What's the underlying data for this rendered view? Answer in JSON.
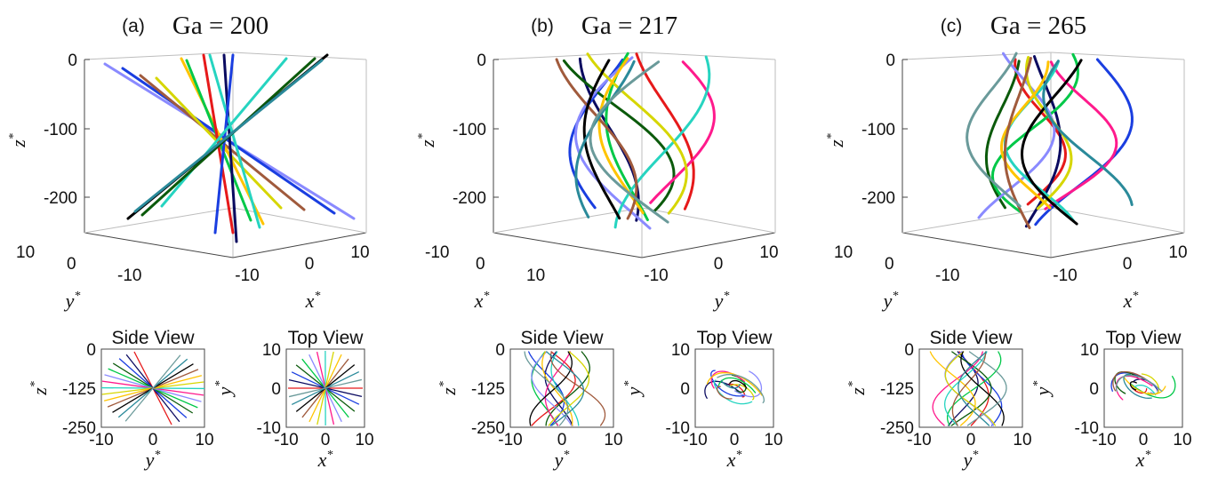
{
  "colors": [
    "#e6191a",
    "#0a0a60",
    "#1a3ee0",
    "#0b5a0b",
    "#00c848",
    "#8a8aff",
    "#ff1a8c",
    "#26d4c0",
    "#d6d600",
    "#ffc400",
    "#a05a3c",
    "#000000",
    "#2a8a9a",
    "#6a9a9a"
  ],
  "chart_data": [
    {
      "panel": "a",
      "label": "(a)",
      "title": "Ga = 200",
      "type": "line",
      "ga": 200,
      "pattern": "straight oblique trajectories through a common point",
      "view3d": {
        "zticks": [
          "0",
          "-100",
          "-200"
        ],
        "zlabel": "z*",
        "zlim": [
          -250,
          0
        ],
        "left_axis": {
          "label": "y*",
          "ticks": [
            "10",
            "0",
            "-10"
          ]
        },
        "right_axis": {
          "label": "x*",
          "ticks": [
            "-10",
            "0",
            "10"
          ]
        }
      },
      "side_view": {
        "title": "Side View",
        "xlabel": "y*",
        "ylabel": "z*",
        "xticks": [
          "-10",
          "0",
          "10"
        ],
        "yticks": [
          "0",
          "-125",
          "-250"
        ],
        "xlim": [
          -10,
          10
        ],
        "ylim": [
          -250,
          0
        ]
      },
      "top_view": {
        "title": "Top View",
        "xlabel": "x*",
        "ylabel": "y*",
        "xticks": [
          "-10",
          "0",
          "10"
        ],
        "yticks": [
          "10",
          "0",
          "-10"
        ],
        "xlim": [
          -10,
          10
        ],
        "ylim": [
          -10,
          10
        ]
      }
    },
    {
      "panel": "b",
      "label": "(b)",
      "title": "Ga = 217",
      "type": "line",
      "ga": 217,
      "pattern": "planar zigzag trajectories",
      "view3d": {
        "zticks": [
          "0",
          "-100",
          "-200"
        ],
        "zlabel": "z*",
        "zlim": [
          -250,
          0
        ],
        "left_axis": {
          "label": "x*",
          "ticks": [
            "-10",
            "0",
            "10"
          ]
        },
        "right_axis": {
          "label": "y*",
          "ticks": [
            "-10",
            "0",
            "10"
          ]
        }
      },
      "side_view": {
        "title": "Side View",
        "xlabel": "y*",
        "ylabel": "z*",
        "xticks": [
          "-10",
          "0",
          "10"
        ],
        "yticks": [
          "0",
          "-125",
          "-250"
        ],
        "xlim": [
          -10,
          10
        ],
        "ylim": [
          -250,
          0
        ]
      },
      "top_view": {
        "title": "Top View",
        "xlabel": "x*",
        "ylabel": "y*",
        "xticks": [
          "-10",
          "0",
          "10"
        ],
        "yticks": [
          "10",
          "0",
          "-10"
        ],
        "xlim": [
          -10,
          10
        ],
        "ylim": [
          -10,
          10
        ]
      }
    },
    {
      "panel": "c",
      "label": "(c)",
      "title": "Ga = 265",
      "type": "line",
      "ga": 265,
      "pattern": "chaotic zigzag trajectories",
      "view3d": {
        "zticks": [
          "0",
          "-100",
          "-200"
        ],
        "zlabel": "z*",
        "zlim": [
          -250,
          0
        ],
        "left_axis": {
          "label": "y*",
          "ticks": [
            "10",
            "0",
            "-10"
          ]
        },
        "right_axis": {
          "label": "x*",
          "ticks": [
            "-10",
            "0",
            "10"
          ]
        }
      },
      "side_view": {
        "title": "Side View",
        "xlabel": "y*",
        "ylabel": "z*",
        "xticks": [
          "-10",
          "0",
          "10"
        ],
        "yticks": [
          "0",
          "-125",
          "-250"
        ],
        "xlim": [
          -10,
          10
        ],
        "ylim": [
          -250,
          0
        ]
      },
      "top_view": {
        "title": "Top View",
        "xlabel": "x*",
        "ylabel": "y*",
        "xticks": [
          "-10",
          "0",
          "10"
        ],
        "yticks": [
          "10",
          "0",
          "-10"
        ],
        "xlim": [
          -10,
          10
        ],
        "ylim": [
          -10,
          10
        ]
      }
    }
  ]
}
